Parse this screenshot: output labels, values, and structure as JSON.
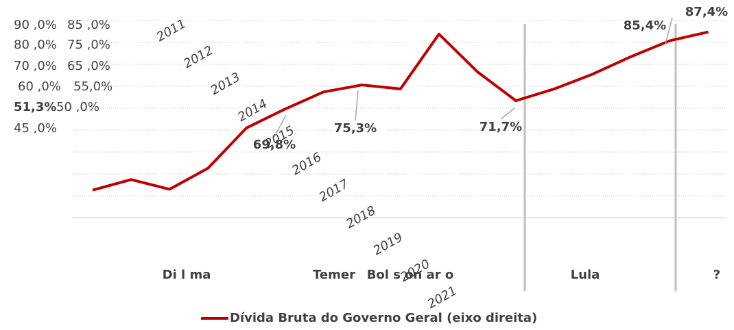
{
  "chart_data": {
    "type": "line",
    "categories": [
      "2011",
      "2012",
      "2013",
      "2014",
      "2015",
      "2016",
      "2017",
      "2018",
      "2019",
      "2020",
      "2021",
      null,
      null,
      null,
      null,
      null,
      null
    ],
    "series": [
      {
        "name": "Dívida Bruta do Governo Geral (eixo direita)",
        "color": "#c00000",
        "values": [
          51.3,
          53.7,
          51.5,
          56.3,
          65.5,
          69.8,
          73.7,
          75.3,
          74.4,
          86.9,
          78.3,
          71.7,
          74.4,
          77.8,
          81.8,
          85.4,
          87.4
        ],
        "value_labels": [
          "51,3%",
          null,
          null,
          null,
          null,
          "69,8%",
          null,
          "75,3%",
          null,
          null,
          null,
          "71,7%",
          null,
          null,
          null,
          "85,4%",
          "87,4%"
        ]
      }
    ],
    "ylim": [
      45,
      90
    ],
    "yticks": [
      {
        "value": 45,
        "label": "45 ,0%"
      },
      {
        "value": 50,
        "label": "50 ,0%"
      },
      {
        "value": 55,
        "label": "55,0%"
      },
      {
        "value": 60,
        "label": "60 ,0%"
      },
      {
        "value": 65,
        "label": "65 ,0%"
      },
      {
        "value": 70,
        "label": "70 ,0%"
      },
      {
        "value": 75,
        "label": "75 ,0%"
      },
      {
        "value": 80,
        "label": "80 ,0%"
      },
      {
        "value": 85,
        "label": "85 ,0%"
      },
      {
        "value": 90,
        "label": "90 ,0%"
      }
    ],
    "grid": true,
    "periods": [
      "Di l ma",
      "Temer",
      "Bol s on ar o",
      "Lula",
      "?"
    ]
  }
}
